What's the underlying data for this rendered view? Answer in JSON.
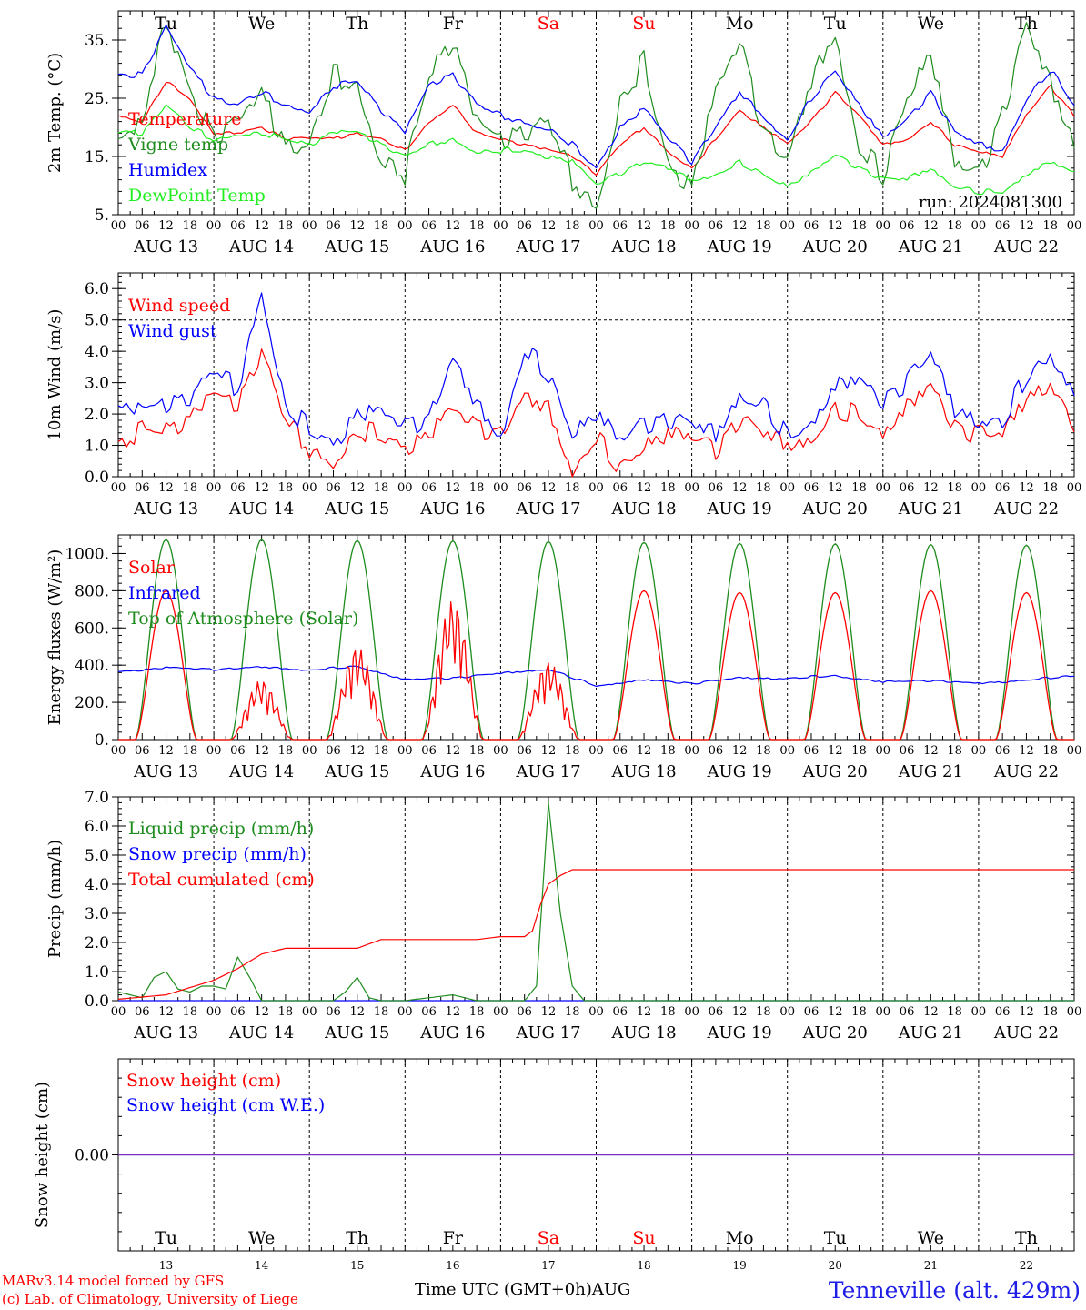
{
  "run_label": "run: 2024081300",
  "day_names": [
    "Tu",
    "We",
    "Th",
    "Fr",
    "Sa",
    "Su",
    "Mo",
    "Tu",
    "We",
    "Th"
  ],
  "weekend_color": "#ff0000",
  "date_labels": [
    "AUG 13",
    "AUG 14",
    "AUG 15",
    "AUG 16",
    "AUG 17",
    "AUG 18",
    "AUG 19",
    "AUG 20",
    "AUG 21",
    "AUG 22"
  ],
  "hour_ticks": [
    "00",
    "06",
    "12",
    "18"
  ],
  "hour_end": "00",
  "day_numbers": [
    "13",
    "14",
    "15",
    "16",
    "17",
    "18",
    "19",
    "20",
    "21",
    "22"
  ],
  "x_axis_title": "Time UTC (GMT+0h)",
  "month_label": "AUG",
  "footer": {
    "model": "MARv3.14 model forced by GFS",
    "copyright": "(c) Lab. of Climatology, University of Liege"
  },
  "station": "Tenneville (alt. 429m)",
  "chart_data": [
    {
      "id": "temp",
      "type": "line",
      "ylabel": "2m Temp. (°C)",
      "ylim": [
        5,
        40
      ],
      "yticks": [
        5,
        15,
        25,
        35
      ],
      "ytick_labels": [
        "5.",
        "15.",
        "25.",
        "35."
      ],
      "grid_days": true,
      "series": [
        {
          "name": "Temperature",
          "color": "#ff0000",
          "x_hours": [
            0,
            6,
            12,
            18,
            24,
            30,
            36,
            42,
            48,
            54,
            60,
            66,
            72,
            78,
            84,
            90,
            96,
            102,
            108,
            114,
            120,
            126,
            132,
            138,
            144,
            150,
            156,
            162,
            168,
            174,
            180,
            186,
            192,
            198,
            204,
            210,
            216,
            222,
            228,
            234,
            240
          ],
          "values": [
            22,
            21,
            28,
            25,
            19,
            19,
            20,
            18,
            18,
            18,
            19,
            18,
            16,
            21,
            24,
            19,
            18,
            17,
            16,
            15,
            12,
            17,
            20,
            16,
            13,
            18,
            23,
            20,
            17,
            21,
            26,
            22,
            17,
            18,
            21,
            17,
            16,
            15,
            22,
            27,
            22
          ]
        },
        {
          "name": "Vigne temp",
          "color": "#1e8c1e",
          "x_hours": [
            0,
            6,
            12,
            18,
            24,
            30,
            36,
            42,
            48,
            54,
            60,
            66,
            72,
            78,
            84,
            90,
            96,
            102,
            108,
            114,
            120,
            126,
            132,
            138,
            144,
            150,
            156,
            162,
            168,
            174,
            180,
            186,
            192,
            198,
            204,
            210,
            216,
            222,
            228,
            234,
            240
          ],
          "values": [
            19,
            22,
            38,
            26,
            18,
            20,
            25,
            17,
            17,
            29,
            28,
            15,
            12,
            29,
            35,
            20,
            17,
            19,
            21,
            11,
            7,
            25,
            31,
            14,
            10,
            25,
            34,
            19,
            14,
            28,
            37,
            17,
            12,
            26,
            33,
            13,
            11,
            22,
            37,
            27,
            18
          ]
        },
        {
          "name": "Humidex",
          "color": "#0000ff",
          "x_hours": [
            0,
            6,
            12,
            18,
            24,
            30,
            36,
            42,
            48,
            54,
            60,
            66,
            72,
            78,
            84,
            90,
            96,
            102,
            108,
            114,
            120,
            126,
            132,
            138,
            144,
            150,
            156,
            162,
            168,
            174,
            180,
            186,
            192,
            198,
            204,
            210,
            216,
            222,
            228,
            234,
            240
          ],
          "values": [
            29,
            29,
            37,
            30,
            25,
            24,
            26,
            24,
            23,
            27,
            28,
            23,
            19,
            27,
            29,
            24,
            22,
            21,
            20,
            17,
            13,
            20,
            23,
            18,
            14,
            20,
            26,
            22,
            18,
            25,
            30,
            24,
            18,
            21,
            26,
            19,
            17,
            16,
            25,
            30,
            24
          ]
        },
        {
          "name": "DewPoint Temp",
          "color": "#22ee22",
          "x_hours": [
            0,
            6,
            12,
            18,
            24,
            30,
            36,
            42,
            48,
            54,
            60,
            66,
            72,
            78,
            84,
            90,
            96,
            102,
            108,
            114,
            120,
            126,
            132,
            138,
            144,
            150,
            156,
            162,
            168,
            174,
            180,
            186,
            192,
            198,
            204,
            210,
            216,
            222,
            228,
            234,
            240
          ],
          "values": [
            19,
            19,
            24,
            20,
            18,
            19,
            19,
            18,
            17,
            19,
            19,
            17,
            15,
            17,
            18,
            16,
            16,
            16,
            15,
            14,
            10,
            12,
            14,
            13,
            11,
            12,
            14,
            12,
            10,
            12,
            15,
            13,
            11,
            11,
            13,
            10,
            9,
            9,
            12,
            14,
            12
          ]
        }
      ]
    },
    {
      "id": "wind",
      "type": "line",
      "ylabel": "10m Wind (m/s)",
      "ylim": [
        0,
        6.5
      ],
      "yticks": [
        0,
        1,
        2,
        3,
        4,
        5,
        6
      ],
      "ytick_labels": [
        "0.0",
        "1.0",
        "2.0",
        "3.0",
        "4.0",
        "5.0",
        "6.0"
      ],
      "ref_line": 5,
      "series": [
        {
          "name": "Wind speed",
          "color": "#ff0000",
          "x_hours": [
            0,
            6,
            12,
            18,
            24,
            30,
            36,
            42,
            48,
            54,
            60,
            66,
            72,
            78,
            84,
            90,
            96,
            102,
            108,
            114,
            120,
            126,
            132,
            138,
            144,
            150,
            156,
            162,
            168,
            174,
            180,
            186,
            192,
            198,
            204,
            210,
            216,
            222,
            228,
            234,
            240
          ],
          "values": [
            1.0,
            1.5,
            1.5,
            1.8,
            2.5,
            2.2,
            4.0,
            1.8,
            0.9,
            0.6,
            1.5,
            1.3,
            1.0,
            1.3,
            2.0,
            1.5,
            1.3,
            2.5,
            2.2,
            0.3,
            1.3,
            0.3,
            1.1,
            1.3,
            1.1,
            0.8,
            1.8,
            1.3,
            1.0,
            1.3,
            2.2,
            2.0,
            1.5,
            2.2,
            2.8,
            1.5,
            1.3,
            1.2,
            2.5,
            3.1,
            1.7
          ]
        },
        {
          "name": "Wind gust",
          "color": "#0000ff",
          "x_hours": [
            0,
            6,
            12,
            18,
            24,
            30,
            36,
            42,
            48,
            54,
            60,
            66,
            72,
            78,
            84,
            90,
            96,
            102,
            108,
            114,
            120,
            126,
            132,
            138,
            144,
            150,
            156,
            162,
            168,
            174,
            180,
            186,
            192,
            198,
            204,
            210,
            216,
            222,
            228,
            234,
            240
          ],
          "values": [
            2.1,
            2.0,
            2.2,
            2.5,
            3.4,
            2.8,
            6.1,
            2.3,
            1.5,
            1.1,
            2.0,
            1.9,
            1.5,
            1.8,
            3.7,
            2.3,
            1.4,
            4.1,
            3.3,
            1.5,
            2.0,
            1.0,
            1.6,
            1.8,
            1.6,
            1.3,
            2.7,
            2.4,
            1.3,
            1.8,
            2.9,
            3.0,
            2.3,
            3.0,
            3.8,
            2.1,
            1.9,
            1.8,
            3.2,
            4.1,
            2.6
          ]
        }
      ]
    },
    {
      "id": "flux",
      "type": "line",
      "ylabel": "Energy fluxes (W/m²)",
      "ylim": [
        0,
        1100
      ],
      "yticks": [
        0,
        200,
        400,
        600,
        800,
        1000
      ],
      "ytick_labels": [
        "0.",
        "200.",
        "400.",
        "600.",
        "800.",
        "1000."
      ],
      "series": [
        {
          "name": "Solar",
          "color": "#ff0000",
          "day_peaks": [
            800,
            320,
            500,
            750,
            420,
            800,
            790,
            790,
            800,
            790
          ]
        },
        {
          "name": "Infrared",
          "color": "#0000ff",
          "x_hours": [
            0,
            12,
            24,
            36,
            48,
            60,
            72,
            84,
            96,
            108,
            120,
            132,
            144,
            156,
            168,
            180,
            192,
            204,
            216,
            228,
            240
          ],
          "values": [
            365,
            385,
            375,
            390,
            375,
            395,
            320,
            330,
            355,
            380,
            290,
            320,
            300,
            330,
            330,
            345,
            310,
            315,
            300,
            320,
            345
          ]
        },
        {
          "name": "Top of Atmosphere (Solar)",
          "color": "#1e8c1e",
          "day_peaks": [
            1075,
            1075,
            1070,
            1068,
            1065,
            1060,
            1055,
            1052,
            1048,
            1045
          ]
        }
      ]
    },
    {
      "id": "precip",
      "type": "line",
      "ylabel": "Precip (mm/h)",
      "ylim": [
        0,
        7
      ],
      "yticks": [
        0,
        1,
        2,
        3,
        4,
        5,
        6,
        7
      ],
      "ytick_labels": [
        "0.0",
        "1.0",
        "2.0",
        "3.0",
        "4.0",
        "5.0",
        "6.0",
        "7.0"
      ],
      "series": [
        {
          "name": "Liquid precip (mm/h)",
          "color": "#1e8c1e",
          "x_hours": [
            0,
            3,
            6,
            9,
            12,
            15,
            18,
            21,
            24,
            27,
            30,
            33,
            36,
            39,
            42,
            48,
            54,
            57,
            60,
            63,
            66,
            72,
            84,
            90,
            96,
            102,
            105,
            108,
            111,
            114,
            117,
            120,
            240
          ],
          "values": [
            0.3,
            0.2,
            0.1,
            0.8,
            1.0,
            0.4,
            0.3,
            0.5,
            0.5,
            0.4,
            1.5,
            0.8,
            0,
            0,
            0,
            0,
            0,
            0.3,
            0.8,
            0.1,
            0,
            0,
            0.2,
            0,
            0,
            0,
            0.5,
            6.8,
            3.0,
            0.5,
            0,
            0,
            0
          ]
        },
        {
          "name": "Snow precip (mm/h)",
          "color": "#0000ff",
          "x_hours": [
            0,
            240
          ],
          "values": [
            0,
            0
          ]
        },
        {
          "name": "Total cumulated (cm)",
          "color": "#ff0000",
          "x_hours": [
            0,
            12,
            24,
            30,
            36,
            42,
            48,
            60,
            66,
            72,
            90,
            96,
            102,
            104,
            106,
            108,
            111,
            114,
            240
          ],
          "values": [
            0.05,
            0.2,
            0.7,
            1.1,
            1.6,
            1.8,
            1.8,
            1.8,
            2.1,
            2.1,
            2.1,
            2.2,
            2.2,
            2.4,
            3.3,
            4.0,
            4.3,
            4.5,
            4.5
          ]
        }
      ]
    },
    {
      "id": "snow",
      "type": "line",
      "ylabel": "Snow height (cm)",
      "ylim": [
        -1,
        1
      ],
      "yticks": [
        0
      ],
      "ytick_labels": [
        "0.00"
      ],
      "series": [
        {
          "name": "Snow height (cm)",
          "color": "#ff0000",
          "x_hours": [
            0,
            240
          ],
          "values": [
            0,
            0
          ]
        },
        {
          "name": "Snow height (cm W.E.)",
          "color": "#0000ff",
          "x_hours": [
            0,
            240
          ],
          "values": [
            0,
            0
          ]
        }
      ]
    }
  ]
}
